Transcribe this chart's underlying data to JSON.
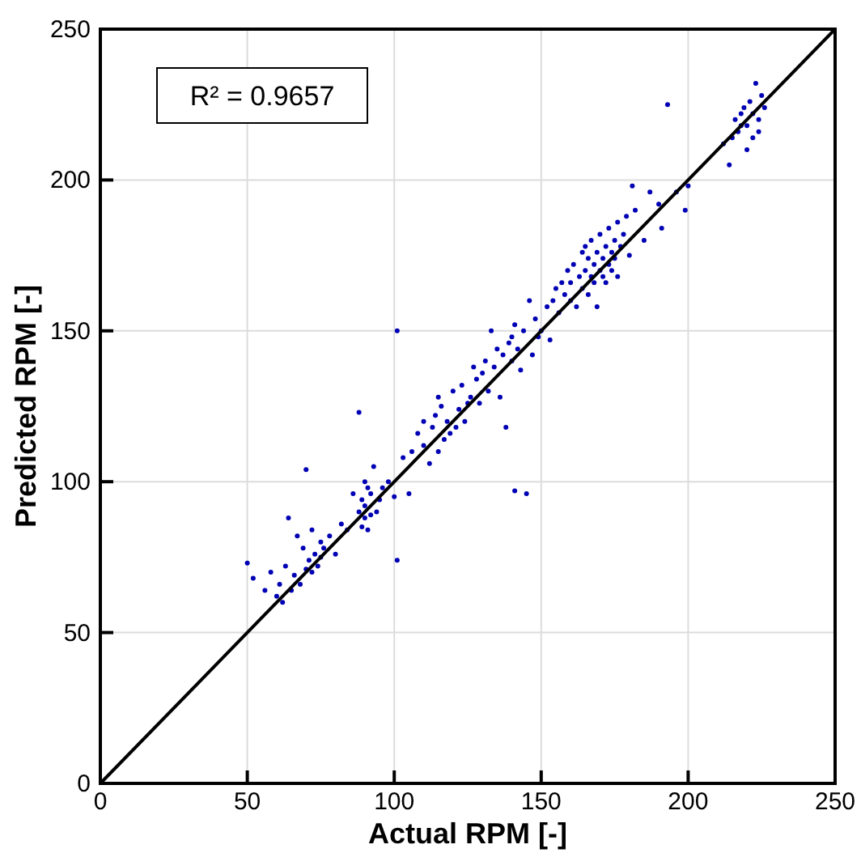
{
  "chart_data": {
    "type": "scatter",
    "xlabel": "Actual RPM [-]",
    "ylabel": "Predicted RPM [-]",
    "xlim": [
      0,
      250
    ],
    "ylim": [
      0,
      250
    ],
    "xticks": [
      0,
      50,
      100,
      150,
      200,
      250
    ],
    "yticks": [
      0,
      50,
      100,
      150,
      200,
      250
    ],
    "grid": true,
    "annotations": [
      "R² = 0.9657"
    ],
    "series": [
      {
        "color": "#0000b4",
        "marker": "circle",
        "x": [
          50,
          52,
          56,
          58,
          60,
          61,
          62,
          63,
          64,
          65,
          66,
          67,
          68,
          69,
          70,
          70,
          71,
          72,
          72,
          73,
          74,
          75,
          75,
          76,
          78,
          80,
          82,
          84,
          86,
          88,
          88,
          89,
          89,
          90,
          90,
          90,
          91,
          91,
          92,
          92,
          93,
          94,
          95,
          96,
          98,
          100,
          101,
          101,
          103,
          105,
          106,
          108,
          110,
          110,
          112,
          113,
          114,
          115,
          115,
          116,
          117,
          118,
          119,
          120,
          121,
          122,
          123,
          124,
          125,
          126,
          127,
          128,
          129,
          130,
          131,
          132,
          133,
          134,
          135,
          136,
          137,
          138,
          139,
          140,
          140,
          141,
          141,
          142,
          143,
          144,
          145,
          146,
          147,
          148,
          149,
          150,
          152,
          153,
          154,
          155,
          156,
          157,
          158,
          159,
          160,
          160,
          161,
          162,
          163,
          164,
          164,
          165,
          165,
          166,
          166,
          167,
          167,
          168,
          168,
          169,
          169,
          170,
          170,
          171,
          171,
          172,
          172,
          173,
          173,
          174,
          174,
          175,
          175,
          176,
          176,
          177,
          178,
          179,
          180,
          181,
          182,
          185,
          187,
          190,
          191,
          193,
          196,
          199,
          200,
          212,
          214,
          215,
          216,
          217,
          218,
          218,
          219,
          220,
          220,
          221,
          222,
          222,
          223,
          224,
          224,
          225,
          226
        ],
        "values": [
          73,
          68,
          64,
          70,
          62,
          66,
          60,
          72,
          88,
          64,
          69,
          82,
          66,
          78,
          71,
          104,
          74,
          70,
          84,
          76,
          72,
          80,
          75,
          78,
          82,
          76,
          86,
          84,
          96,
          90,
          123,
          85,
          94,
          88,
          92,
          100,
          84,
          98,
          89,
          96,
          105,
          90,
          94,
          98,
          100,
          95,
          150,
          74,
          108,
          96,
          110,
          116,
          112,
          120,
          106,
          118,
          122,
          128,
          110,
          125,
          114,
          120,
          116,
          130,
          118,
          124,
          132,
          120,
          126,
          128,
          138,
          134,
          126,
          136,
          140,
          130,
          150,
          138,
          144,
          128,
          142,
          118,
          146,
          140,
          148,
          97,
          152,
          144,
          137,
          150,
          96,
          160,
          142,
          154,
          148,
          150,
          158,
          147,
          160,
          164,
          156,
          166,
          162,
          170,
          160,
          166,
          172,
          158,
          168,
          176,
          164,
          170,
          178,
          162,
          174,
          168,
          180,
          166,
          172,
          176,
          158,
          170,
          182,
          168,
          174,
          178,
          166,
          172,
          184,
          170,
          176,
          180,
          174,
          186,
          168,
          178,
          182,
          188,
          175,
          198,
          190,
          180,
          196,
          192,
          184,
          225,
          196,
          190,
          198,
          212,
          205,
          214,
          220,
          216,
          222,
          218,
          224,
          210,
          218,
          226,
          214,
          222,
          232,
          220,
          216,
          228,
          224
        ]
      },
      {
        "type": "line",
        "color": "#000000",
        "line_style": "solid",
        "x": [
          0,
          250
        ],
        "values": [
          0,
          250
        ]
      }
    ]
  }
}
